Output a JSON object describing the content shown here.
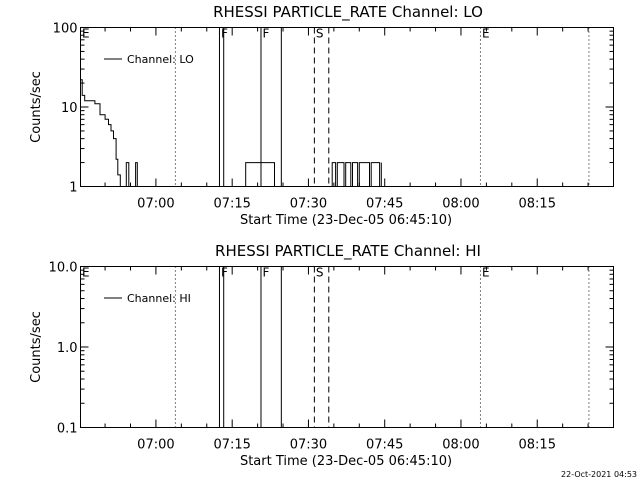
{
  "footer": "22-Oct-2021 04:53",
  "chart_data": [
    {
      "type": "line",
      "title": "RHESSI PARTICLE_RATE Channel: LO",
      "xlabel": "Start Time (23-Dec-05 06:45:10)",
      "ylabel": "Counts/sec",
      "yscale": "log",
      "xlim": [
        "06:45:10",
        "08:30:00"
      ],
      "ylim": [
        1,
        100
      ],
      "x_ticks": [
        "07:00",
        "07:15",
        "07:30",
        "07:45",
        "08:00",
        "08:15"
      ],
      "y_ticks": [
        "1",
        "10",
        "100"
      ],
      "legend": {
        "label": "Channel: LO",
        "position": "top-left"
      },
      "grid": false,
      "series": [
        {
          "name": "Channel: LO",
          "x": [
            "06:45:12",
            "06:45:30",
            "06:46:00",
            "06:47:00",
            "06:48:00",
            "06:49:00",
            "06:49:40",
            "06:50:00",
            "06:50:40",
            "06:51:10",
            "06:51:40",
            "06:52:10",
            "06:52:30",
            "06:53:00",
            "06:53:40",
            "06:54:10",
            "06:54:40",
            "06:55:40",
            "06:56:00",
            "06:56:20"
          ],
          "y": [
            22,
            14,
            12,
            12,
            11,
            8,
            8,
            7,
            6,
            5,
            4,
            2.2,
            1.4,
            1,
            1,
            2,
            1,
            1,
            2,
            1
          ]
        },
        {
          "name": "Channel: LO",
          "x": [
            "07:17:20",
            "07:17:40",
            "07:23:00",
            "07:23:20",
            "07:23:40",
            "07:24:20"
          ],
          "y": [
            1,
            2,
            2,
            1,
            1,
            1
          ]
        },
        {
          "name": "Channel: LO",
          "x": [
            "07:34:20",
            "07:34:40",
            "07:35:20",
            "07:35:40",
            "07:37:00",
            "07:37:20",
            "07:38:20",
            "07:38:40",
            "07:39:40",
            "07:40:00",
            "07:42:00",
            "07:42:20",
            "07:44:00",
            "07:44:20"
          ],
          "y": [
            1,
            2,
            1,
            2,
            1,
            2,
            1,
            2,
            1,
            2,
            1,
            2,
            1,
            2
          ]
        }
      ],
      "markers": [
        {
          "time": "06:45:10",
          "label": "E",
          "style": "dotted"
        },
        {
          "time": "07:03:50",
          "label": "",
          "style": "dotted"
        },
        {
          "time": "07:12:30",
          "label": "F",
          "style": "solid"
        },
        {
          "time": "07:13:20",
          "label": "",
          "style": "solid"
        },
        {
          "time": "07:20:40",
          "label": "F",
          "style": "solid"
        },
        {
          "time": "07:24:40",
          "label": "",
          "style": "solid"
        },
        {
          "time": "07:31:10",
          "label": "S",
          "style": "dashed"
        },
        {
          "time": "07:34:00",
          "label": "",
          "style": "dashed"
        },
        {
          "time": "08:03:50",
          "label": "E",
          "style": "dotted"
        },
        {
          "time": "08:25:10",
          "label": "",
          "style": "dotted"
        }
      ]
    },
    {
      "type": "line",
      "title": "RHESSI PARTICLE_RATE Channel: HI",
      "xlabel": "Start Time (23-Dec-05 06:45:10)",
      "ylabel": "Counts/sec",
      "yscale": "log",
      "xlim": [
        "06:45:10",
        "08:30:00"
      ],
      "ylim": [
        0.1,
        10
      ],
      "x_ticks": [
        "07:00",
        "07:15",
        "07:30",
        "07:45",
        "08:00",
        "08:15"
      ],
      "y_ticks": [
        "0.1",
        "1.0",
        "10.0"
      ],
      "legend": {
        "label": "Channel: HI",
        "position": "top-left"
      },
      "grid": false,
      "series": [],
      "markers": [
        {
          "time": "06:45:10",
          "label": "E",
          "style": "dotted"
        },
        {
          "time": "07:03:50",
          "label": "",
          "style": "dotted"
        },
        {
          "time": "07:12:30",
          "label": "F",
          "style": "solid"
        },
        {
          "time": "07:13:20",
          "label": "",
          "style": "solid"
        },
        {
          "time": "07:20:40",
          "label": "F",
          "style": "solid"
        },
        {
          "time": "07:24:40",
          "label": "",
          "style": "solid"
        },
        {
          "time": "07:31:10",
          "label": "S",
          "style": "dashed"
        },
        {
          "time": "07:34:00",
          "label": "",
          "style": "dashed"
        },
        {
          "time": "08:03:50",
          "label": "E",
          "style": "dotted"
        },
        {
          "time": "08:25:10",
          "label": "",
          "style": "dotted"
        }
      ]
    }
  ]
}
